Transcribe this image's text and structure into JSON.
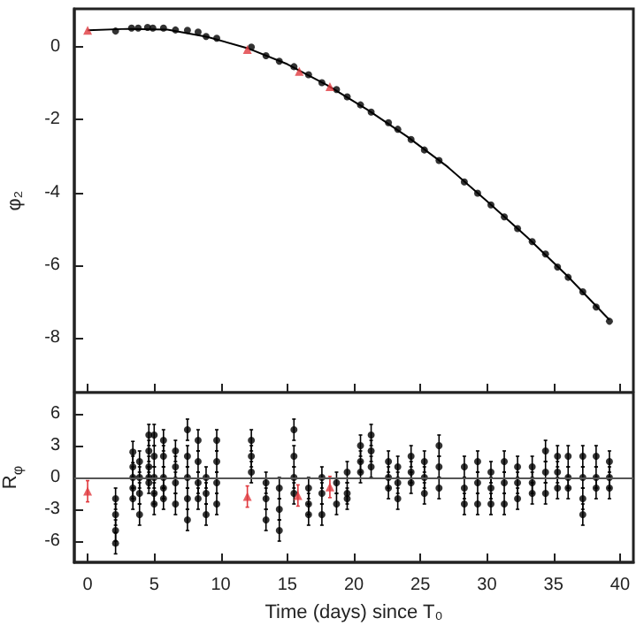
{
  "chart_data": [
    {
      "type": "scatter",
      "ylabel": "φ₂",
      "xlim": [
        -1,
        41
      ],
      "xticks": [
        0,
        5,
        10,
        15,
        20,
        25,
        30,
        35,
        40
      ],
      "ylim": [
        -9.5,
        1.05
      ],
      "yticks": [
        -8,
        -6,
        -4,
        -2,
        0
      ],
      "tick_labels": "y",
      "grid": false,
      "series": [
        {
          "type": "line",
          "color": "#000000",
          "marker": "none",
          "x": [
            0,
            3,
            6,
            9,
            12,
            15,
            18,
            21,
            24,
            27,
            30,
            33,
            36,
            39.2
          ],
          "values": [
            0.46,
            0.5,
            0.48,
            0.28,
            -0.03,
            -0.47,
            -1.05,
            -1.72,
            -2.46,
            -3.28,
            -4.24,
            -5.22,
            -6.28,
            -7.5
          ]
        },
        {
          "type": "scatter",
          "color": "#000000",
          "marker": "circle",
          "x": [
            2.1,
            3.3,
            3.8,
            4.5,
            4.9,
            5.7,
            6.6,
            7.5,
            8.3,
            8.9,
            9.7,
            12.3,
            13.4,
            14.4,
            15.5,
            16.6,
            17.6,
            18.7,
            19.5,
            20.5,
            21.3,
            22.6,
            23.3,
            24.3,
            25.3,
            26.4,
            28.3,
            29.3,
            30.3,
            31.3,
            32.3,
            33.4,
            34.4,
            35.3,
            36.1,
            37.2,
            38.2,
            39.2
          ],
          "values": [
            0.44,
            0.52,
            0.52,
            0.54,
            0.52,
            0.52,
            0.47,
            0.46,
            0.41,
            0.29,
            0.24,
            0.0,
            -0.24,
            -0.39,
            -0.54,
            -0.76,
            -0.98,
            -1.17,
            -1.37,
            -1.59,
            -1.79,
            -2.08,
            -2.26,
            -2.54,
            -2.83,
            -3.12,
            -3.71,
            -4.02,
            -4.34,
            -4.67,
            -4.99,
            -5.35,
            -5.69,
            -6.05,
            -6.33,
            -6.73,
            -7.15,
            -7.54
          ]
        },
        {
          "type": "scatter",
          "color": "#e0393e",
          "marker": "triangle",
          "x": [
            0,
            12.0,
            15.9,
            18.2
          ],
          "values": [
            0.46,
            -0.07,
            -0.67,
            -1.09
          ]
        }
      ]
    },
    {
      "type": "scatter",
      "xlabel": "Time (days) since T₀",
      "ylabel": "R$_{φ}$",
      "xlim": [
        -1,
        41
      ],
      "xticks": [
        0,
        5,
        10,
        15,
        20,
        25,
        30,
        35,
        40
      ],
      "ylim": [
        -8,
        8
      ],
      "yticks": [
        -6,
        -3,
        0,
        3,
        6
      ],
      "grid": false,
      "ref_lines": [
        {
          "axis": "y",
          "value": 0,
          "color": "#555555"
        }
      ],
      "series": [
        {
          "type": "scatter",
          "color": "#000000",
          "marker": "circle",
          "x": [
            2.1,
            2.1,
            2.1,
            2.1,
            3.4,
            3.4,
            3.4,
            3.4,
            3.4,
            3.9,
            3.9,
            3.9,
            3.9,
            4.6,
            4.6,
            4.6,
            4.6,
            4.6,
            5.0,
            5.0,
            5.0,
            5.0,
            5.0,
            5.7,
            5.7,
            5.7,
            5.7,
            5.7,
            6.6,
            6.6,
            6.6,
            6.6,
            7.5,
            7.5,
            7.5,
            7.5,
            7.5,
            8.3,
            8.3,
            8.3,
            8.3,
            8.9,
            8.9,
            8.9,
            9.7,
            9.7,
            9.7,
            9.7,
            12.3,
            12.3,
            12.3,
            13.4,
            13.4,
            13.4,
            14.4,
            14.4,
            14.4,
            15.5,
            15.5,
            15.5,
            15.5,
            16.6,
            16.6,
            16.6,
            17.6,
            17.6,
            17.6,
            18.7,
            18.7,
            19.5,
            19.5,
            19.5,
            20.5,
            20.5,
            20.5,
            21.3,
            21.3,
            21.3,
            22.6,
            22.6,
            22.6,
            23.3,
            23.3,
            23.3,
            24.3,
            24.3,
            24.3,
            25.3,
            25.3,
            25.3,
            26.4,
            26.4,
            26.4,
            28.3,
            28.3,
            28.3,
            29.3,
            29.3,
            29.3,
            30.3,
            30.3,
            30.3,
            31.3,
            31.3,
            31.3,
            32.3,
            32.3,
            32.3,
            33.4,
            33.4,
            33.4,
            34.4,
            34.4,
            34.4,
            35.3,
            35.3,
            35.3,
            36.1,
            36.1,
            36.1,
            37.2,
            37.2,
            37.2,
            37.2,
            38.2,
            38.2,
            38.2,
            39.2,
            39.2,
            39.2
          ],
          "values": [
            -2,
            -3.5,
            -5,
            -6.2,
            2.4,
            1,
            0,
            -1,
            -2,
            1.5,
            0,
            -1.5,
            -3.5,
            4,
            2.5,
            1,
            0,
            -0.5,
            4,
            2,
            0,
            -1.5,
            -2.5,
            3.5,
            2,
            0,
            -1,
            -2,
            2.5,
            1,
            -0.5,
            -2.5,
            4.5,
            2,
            0,
            -2,
            -4,
            3.5,
            1.5,
            -0.5,
            -2,
            0,
            -1.5,
            -3.5,
            3.5,
            1.5,
            -0.5,
            -2.5,
            3.5,
            2,
            0.5,
            -0.5,
            -2,
            -4,
            -1,
            -3,
            -5,
            4.5,
            2,
            0,
            -1.5,
            -1,
            -2.5,
            -3.5,
            0,
            -1.5,
            -3.5,
            -0.5,
            -2.5,
            0.5,
            -1.5,
            -2,
            3,
            1.5,
            0.5,
            4,
            2.5,
            1,
            1.5,
            0,
            -1,
            1,
            -0.5,
            -2,
            2,
            0.5,
            -0.5,
            1.5,
            0,
            -1.5,
            3,
            1,
            -1,
            1,
            -1,
            -2.5,
            1.5,
            -0.5,
            -2.5,
            0.5,
            -1,
            -2.5,
            1.5,
            -0.5,
            -2.5,
            1,
            -0.5,
            -2,
            1,
            -0.5,
            -1.5,
            2.5,
            0.5,
            -1.5,
            2,
            0.5,
            -1,
            2,
            0,
            -1,
            2,
            0,
            -2,
            -3.5,
            2,
            0,
            -1,
            1.5,
            0,
            -1
          ],
          "errors": [
            1,
            1,
            1,
            1,
            1,
            1,
            1,
            1,
            1,
            1,
            1,
            1,
            1,
            1,
            1,
            1,
            1,
            1,
            1,
            1,
            1,
            1,
            1,
            1,
            1,
            1,
            1,
            1,
            1,
            1,
            1,
            1,
            1,
            1,
            1,
            1,
            1,
            1,
            1,
            1,
            1,
            1,
            1,
            1,
            1,
            1,
            1,
            1,
            1,
            1,
            1,
            1,
            1,
            1,
            1,
            1,
            1,
            1,
            1,
            1,
            1,
            1,
            1,
            1,
            1,
            1,
            1,
            1,
            1,
            1,
            1,
            1,
            1,
            1,
            1,
            1,
            1,
            1,
            1,
            1,
            1,
            1,
            1,
            1,
            1,
            1,
            1,
            1,
            1,
            1,
            1,
            1,
            1,
            1,
            1,
            1,
            1,
            1,
            1,
            1,
            1,
            1,
            1,
            1,
            1,
            1,
            1,
            1,
            1,
            1,
            1,
            1,
            1,
            1,
            1,
            1,
            1,
            1,
            1,
            1,
            1,
            1,
            1,
            1,
            1,
            1,
            1,
            1,
            1,
            1
          ]
        },
        {
          "type": "scatter",
          "color": "#e0393e",
          "marker": "triangle",
          "x": [
            0,
            12.0,
            15.8,
            18.2
          ],
          "values": [
            -1.3,
            -1.8,
            -1.7,
            -0.9
          ],
          "errors": [
            1,
            1,
            1,
            1
          ]
        }
      ]
    }
  ]
}
